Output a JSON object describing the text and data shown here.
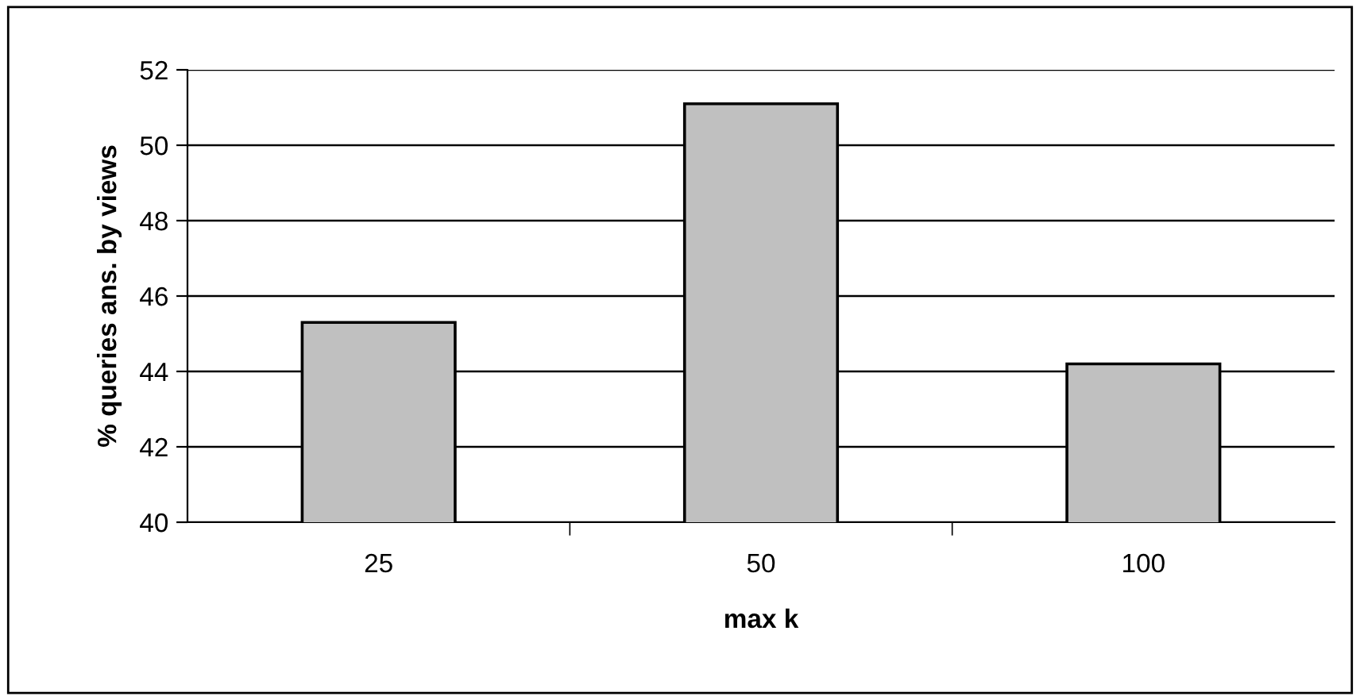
{
  "chart_data": {
    "type": "bar",
    "xlabel": "max k",
    "ylabel": "% queries ans. by views",
    "categories": [
      "25",
      "50",
      "100"
    ],
    "values": [
      45.3,
      51.1,
      44.2
    ],
    "color": "#c0c0c0",
    "ylim": [
      40,
      52
    ],
    "yticks": [
      40,
      42,
      44,
      46,
      48,
      50,
      52
    ],
    "grid": "y",
    "legend": false
  }
}
